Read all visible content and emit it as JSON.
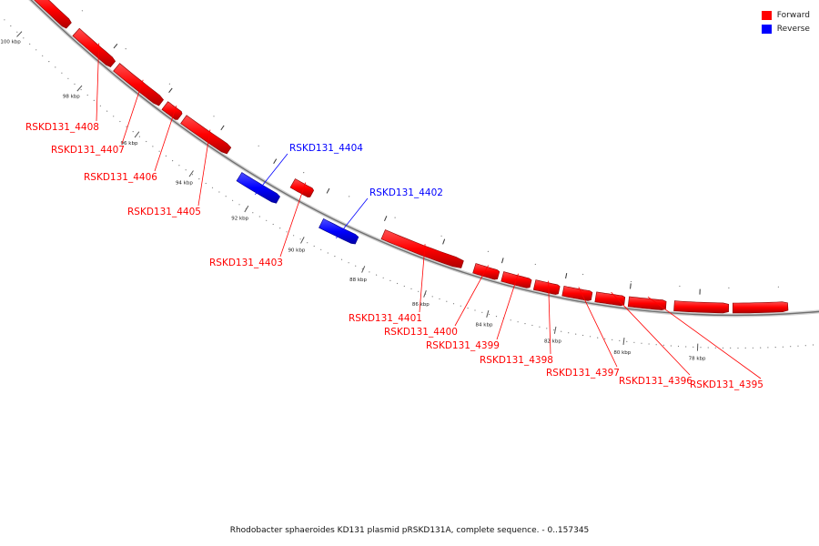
{
  "colors": {
    "forward": "#ff0000",
    "reverse": "#0000ff",
    "backbone": "#aaaaaa",
    "ticks": "#555555",
    "tick_label": "#222222"
  },
  "legend": {
    "forward_label": "Forward",
    "reverse_label": "Reverse"
  },
  "caption": "Rhodobacter sphaeroides KD131 plasmid pRSKD131A, complete sequence. - 0..157345",
  "scale": {
    "unit": "kbp",
    "labeled_ticks_kbp": [
      100,
      98,
      96,
      94,
      92,
      90,
      88,
      86,
      84,
      82,
      80,
      78
    ]
  },
  "genes": [
    {
      "label": "RSKD131_4408",
      "strand": "forward"
    },
    {
      "label": "RSKD131_4407",
      "strand": "forward"
    },
    {
      "label": "RSKD131_4406",
      "strand": "forward"
    },
    {
      "label": "RSKD131_4405",
      "strand": "forward"
    },
    {
      "label": "RSKD131_4404",
      "strand": "reverse"
    },
    {
      "label": "RSKD131_4403",
      "strand": "forward"
    },
    {
      "label": "RSKD131_4402",
      "strand": "reverse"
    },
    {
      "label": "RSKD131_4401",
      "strand": "forward"
    },
    {
      "label": "RSKD131_4400",
      "strand": "forward"
    },
    {
      "label": "RSKD131_4399",
      "strand": "forward"
    },
    {
      "label": "RSKD131_4398",
      "strand": "forward"
    },
    {
      "label": "RSKD131_4397",
      "strand": "forward"
    },
    {
      "label": "RSKD131_4396",
      "strand": "forward"
    },
    {
      "label": "RSKD131_4395",
      "strand": "forward"
    }
  ]
}
